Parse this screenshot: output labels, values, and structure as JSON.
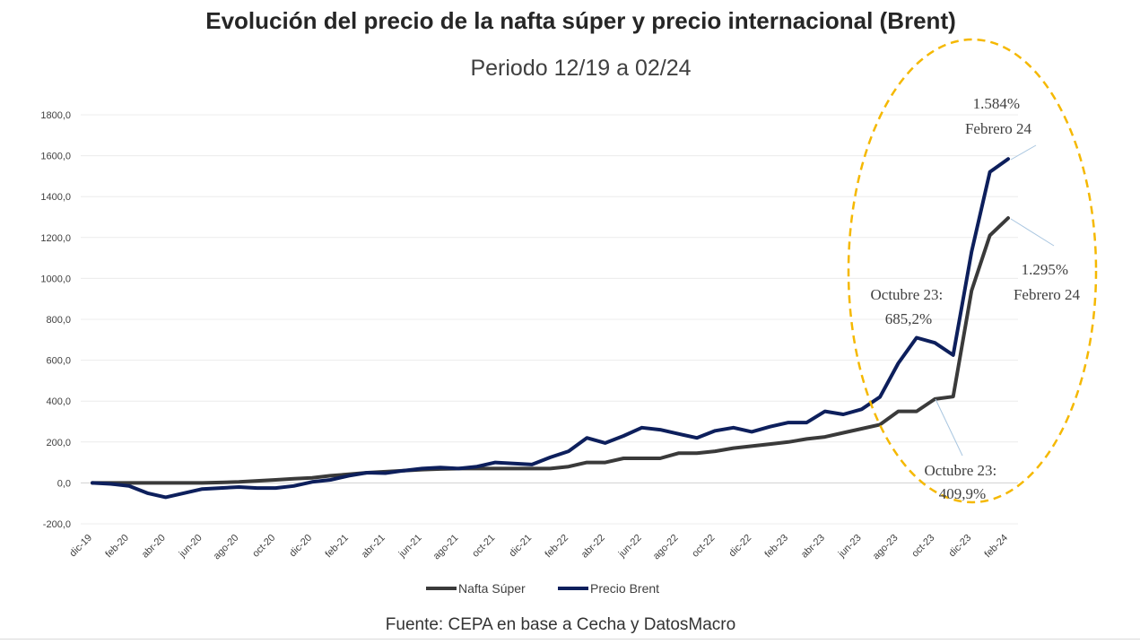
{
  "chart_data": {
    "type": "line",
    "title": "Evolución del precio de la nafta súper y precio internacional (Brent)",
    "subtitle": "Periodo 12/19 a 02/24",
    "ylim": [
      -200,
      1800
    ],
    "yticks": [
      -200,
      0,
      200,
      400,
      600,
      800,
      1000,
      1200,
      1400,
      1600,
      1800
    ],
    "ytick_labels": [
      "-200,0",
      "0,0",
      "200,0",
      "400,0",
      "600,0",
      "800,0",
      "1000,0",
      "1200,0",
      "1400,0",
      "1600,0",
      "1800,0"
    ],
    "x": [
      "dic-19",
      "ene-20",
      "feb-20",
      "mar-20",
      "abr-20",
      "may-20",
      "jun-20",
      "jul-20",
      "ago-20",
      "sep-20",
      "oct-20",
      "nov-20",
      "dic-20",
      "ene-21",
      "feb-21",
      "mar-21",
      "abr-21",
      "may-21",
      "jun-21",
      "jul-21",
      "ago-21",
      "sep-21",
      "oct-21",
      "nov-21",
      "dic-21",
      "ene-22",
      "feb-22",
      "mar-22",
      "abr-22",
      "may-22",
      "jun-22",
      "jul-22",
      "ago-22",
      "sep-22",
      "oct-22",
      "nov-22",
      "dic-22",
      "ene-23",
      "feb-23",
      "mar-23",
      "abr-23",
      "may-23",
      "jun-23",
      "jul-23",
      "ago-23",
      "sep-23",
      "oct-23",
      "nov-23",
      "dic-23",
      "ene-24",
      "feb-24"
    ],
    "x_tick_labels": [
      "dic-19",
      "feb-20",
      "abr-20",
      "jun-20",
      "ago-20",
      "oct-20",
      "dic-20",
      "feb-21",
      "abr-21",
      "jun-21",
      "ago-21",
      "oct-21",
      "dic-21",
      "feb-22",
      "abr-22",
      "jun-22",
      "ago-22",
      "oct-22",
      "dic-22",
      "feb-23",
      "abr-23",
      "jun-23",
      "ago-23",
      "oct-23",
      "dic-23",
      "feb-24"
    ],
    "series": [
      {
        "name": "Nafta Súper",
        "color": "#3a3a3a",
        "values": [
          0,
          0,
          0,
          0,
          0,
          0,
          0,
          2,
          5,
          10,
          15,
          20,
          25,
          35,
          42,
          50,
          55,
          60,
          65,
          68,
          70,
          70,
          70,
          70,
          70,
          70,
          80,
          100,
          100,
          120,
          120,
          120,
          145,
          145,
          155,
          170,
          180,
          190,
          200,
          215,
          225,
          245,
          265,
          285,
          350,
          350,
          410,
          422,
          940,
          1210,
          1295
        ]
      },
      {
        "name": "Precio Brent",
        "color": "#0d1f5c",
        "values": [
          0,
          -5,
          -15,
          -50,
          -70,
          -50,
          -30,
          -25,
          -20,
          -25,
          -25,
          -15,
          5,
          15,
          35,
          50,
          48,
          60,
          70,
          75,
          70,
          80,
          100,
          95,
          90,
          125,
          155,
          220,
          195,
          230,
          270,
          260,
          240,
          220,
          255,
          270,
          250,
          275,
          295,
          295,
          350,
          335,
          360,
          420,
          585,
          710,
          685,
          625,
          1130,
          1520,
          1584
        ]
      }
    ],
    "legend": [
      "Nafta Súper",
      "Precio Brent"
    ],
    "legend_position": "bottom",
    "annotations": [
      {
        "lines": [
          "1.584%",
          "Febrero 24"
        ]
      },
      {
        "lines": [
          "1.295%",
          "Febrero 24"
        ]
      },
      {
        "lines": [
          "Octubre 23:",
          "685,2%"
        ]
      },
      {
        "lines": [
          "Octubre 23:",
          "409,9%"
        ]
      }
    ],
    "highlight_color": "#f5b800"
  },
  "source_note": "Fuente: CEPA en base a Cecha y DatosMacro"
}
